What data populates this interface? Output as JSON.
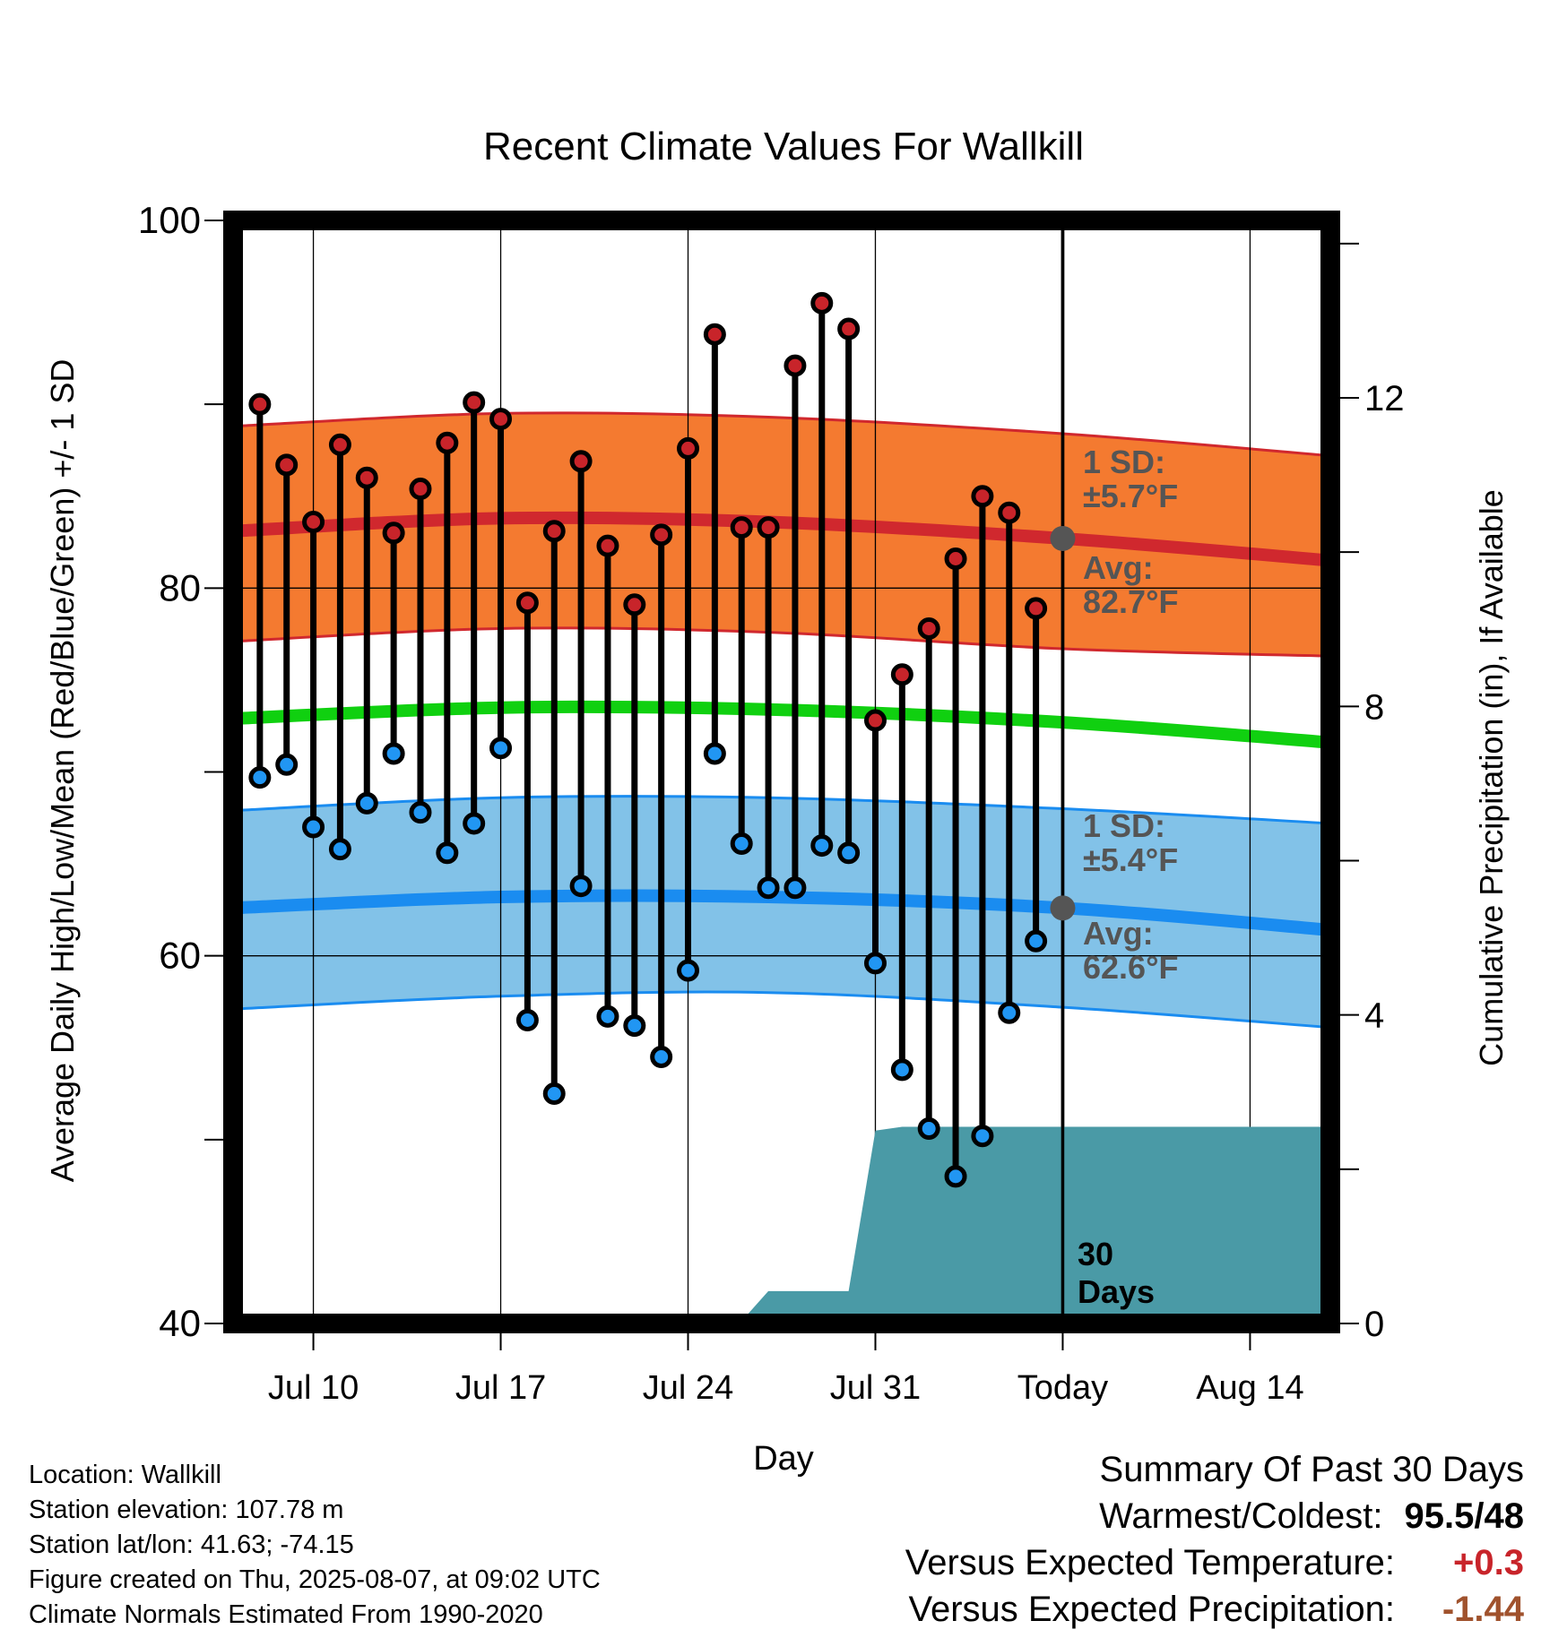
{
  "chart_data": {
    "type": "line",
    "title": "Recent Climate Values For Wallkill",
    "xlabel": "Day",
    "ylabel": "Average Daily High/Low/Mean (Red/Blue/Green) +/- 1 SD",
    "ylabel_right": "Cumulative Precipitation (in), If Available",
    "ylim": [
      40,
      100
    ],
    "y_ticks": [
      "40",
      "60",
      "80",
      "100"
    ],
    "ylim_right": [
      0,
      14.3
    ],
    "y_ticks_right": [
      "0",
      "4",
      "8",
      "12"
    ],
    "x_range": [
      "2025-07-07",
      "2025-08-17"
    ],
    "x_ticks": [
      {
        "date": "2025-07-10",
        "label": "Jul 10"
      },
      {
        "date": "2025-07-17",
        "label": "Jul 17"
      },
      {
        "date": "2025-07-24",
        "label": "Jul 24"
      },
      {
        "date": "2025-07-31",
        "label": "Jul 31"
      },
      {
        "date": "2025-08-07",
        "label": "Today"
      },
      {
        "date": "2025-08-14",
        "label": "Aug 14"
      }
    ],
    "grid": true,
    "today": "2025-08-07",
    "today_label": "30\nDays",
    "daily": {
      "dates": [
        "2025-07-08",
        "2025-07-09",
        "2025-07-10",
        "2025-07-11",
        "2025-07-12",
        "2025-07-13",
        "2025-07-14",
        "2025-07-15",
        "2025-07-16",
        "2025-07-17",
        "2025-07-18",
        "2025-07-19",
        "2025-07-20",
        "2025-07-21",
        "2025-07-22",
        "2025-07-23",
        "2025-07-24",
        "2025-07-25",
        "2025-07-26",
        "2025-07-27",
        "2025-07-28",
        "2025-07-29",
        "2025-07-30",
        "2025-07-31",
        "2025-08-01",
        "2025-08-02",
        "2025-08-03",
        "2025-08-04",
        "2025-08-05",
        "2025-08-06"
      ],
      "high": [
        90,
        86.7,
        83.6,
        87.8,
        86,
        83,
        85.4,
        87.9,
        90.1,
        89.2,
        79.2,
        83.1,
        86.9,
        82.3,
        79.1,
        82.9,
        87.6,
        93.8,
        83.3,
        83.3,
        92.1,
        95.5,
        94.1,
        72.8,
        75.3,
        77.8,
        81.6,
        85,
        84.1,
        78.9
      ],
      "low": [
        69.7,
        70.4,
        67,
        65.8,
        68.3,
        71,
        67.8,
        65.6,
        67.2,
        71.3,
        56.5,
        52.5,
        63.8,
        56.7,
        56.2,
        54.5,
        59.2,
        71,
        66.1,
        63.7,
        63.7,
        66,
        65.6,
        59.6,
        53.8,
        50.6,
        48,
        50.2,
        56.9,
        60.8
      ]
    },
    "normals": {
      "dates": [
        "2025-07-07",
        "2025-07-17",
        "2025-07-27",
        "2025-08-07",
        "2025-08-17"
      ],
      "high_avg": [
        83.1,
        83.8,
        83.6,
        82.7,
        81.5
      ],
      "high_sd_upper": [
        88.8,
        89.5,
        89.3,
        88.4,
        87.2
      ],
      "high_sd_lower": [
        77.1,
        77.8,
        77.6,
        76.7,
        76.3
      ],
      "mean": [
        72.9,
        73.5,
        73.4,
        72.7,
        71.6
      ],
      "low_avg": [
        62.6,
        63.2,
        63.2,
        62.6,
        61.4
      ],
      "low_sd_upper": [
        67.9,
        68.6,
        68.6,
        68,
        67.2
      ],
      "low_sd_lower": [
        57.1,
        57.8,
        58,
        57.2,
        56.1
      ]
    },
    "precip": {
      "dates": [
        "2025-07-08",
        "2025-07-14",
        "2025-07-26",
        "2025-07-27",
        "2025-07-30",
        "2025-07-31",
        "2025-08-01",
        "2025-08-17"
      ],
      "cumulative": [
        0,
        0.03,
        0.03,
        0.42,
        0.42,
        2.5,
        2.55,
        2.55
      ]
    },
    "annotations": {
      "high_sd": {
        "line1": "1 SD:",
        "line2": "±5.7°F"
      },
      "high_avg": {
        "line1": "Avg:",
        "line2": "82.7°F",
        "value": 82.7
      },
      "low_sd": {
        "line1": "1 SD:",
        "line2": "±5.4°F"
      },
      "low_avg": {
        "line1": "Avg:",
        "line2": "62.6°F",
        "value": 62.6
      }
    },
    "colors": {
      "high_band": "#f47a30",
      "high_line": "#d0282e",
      "mean_line": "#10d010",
      "low_band": "#82c2e8",
      "low_line": "#1a8cf0",
      "precip": "#4a9aa6",
      "high_dot": "#c8242a",
      "low_dot": "#2196f3",
      "annotation": "#555555"
    }
  },
  "info": {
    "location": "Location: Wallkill",
    "elevation": "Station elevation: 107.78 m",
    "latlon": "Station lat/lon: 41.63; -74.15",
    "created": "Figure created on Thu, 2025-08-07, at 09:02 UTC",
    "normals": "Climate Normals Estimated From 1990-2020"
  },
  "summary": {
    "title": "Summary Of Past 30 Days",
    "warmest_label": "Warmest/Coldest:",
    "warmest_value": "95.5/48",
    "temp_label": "Versus Expected Temperature:",
    "temp_value": "+0.3",
    "temp_color": "#c8242a",
    "precip_label": "Versus Expected Precipitation:",
    "precip_value": "-1.44",
    "precip_color": "#a0522d"
  }
}
